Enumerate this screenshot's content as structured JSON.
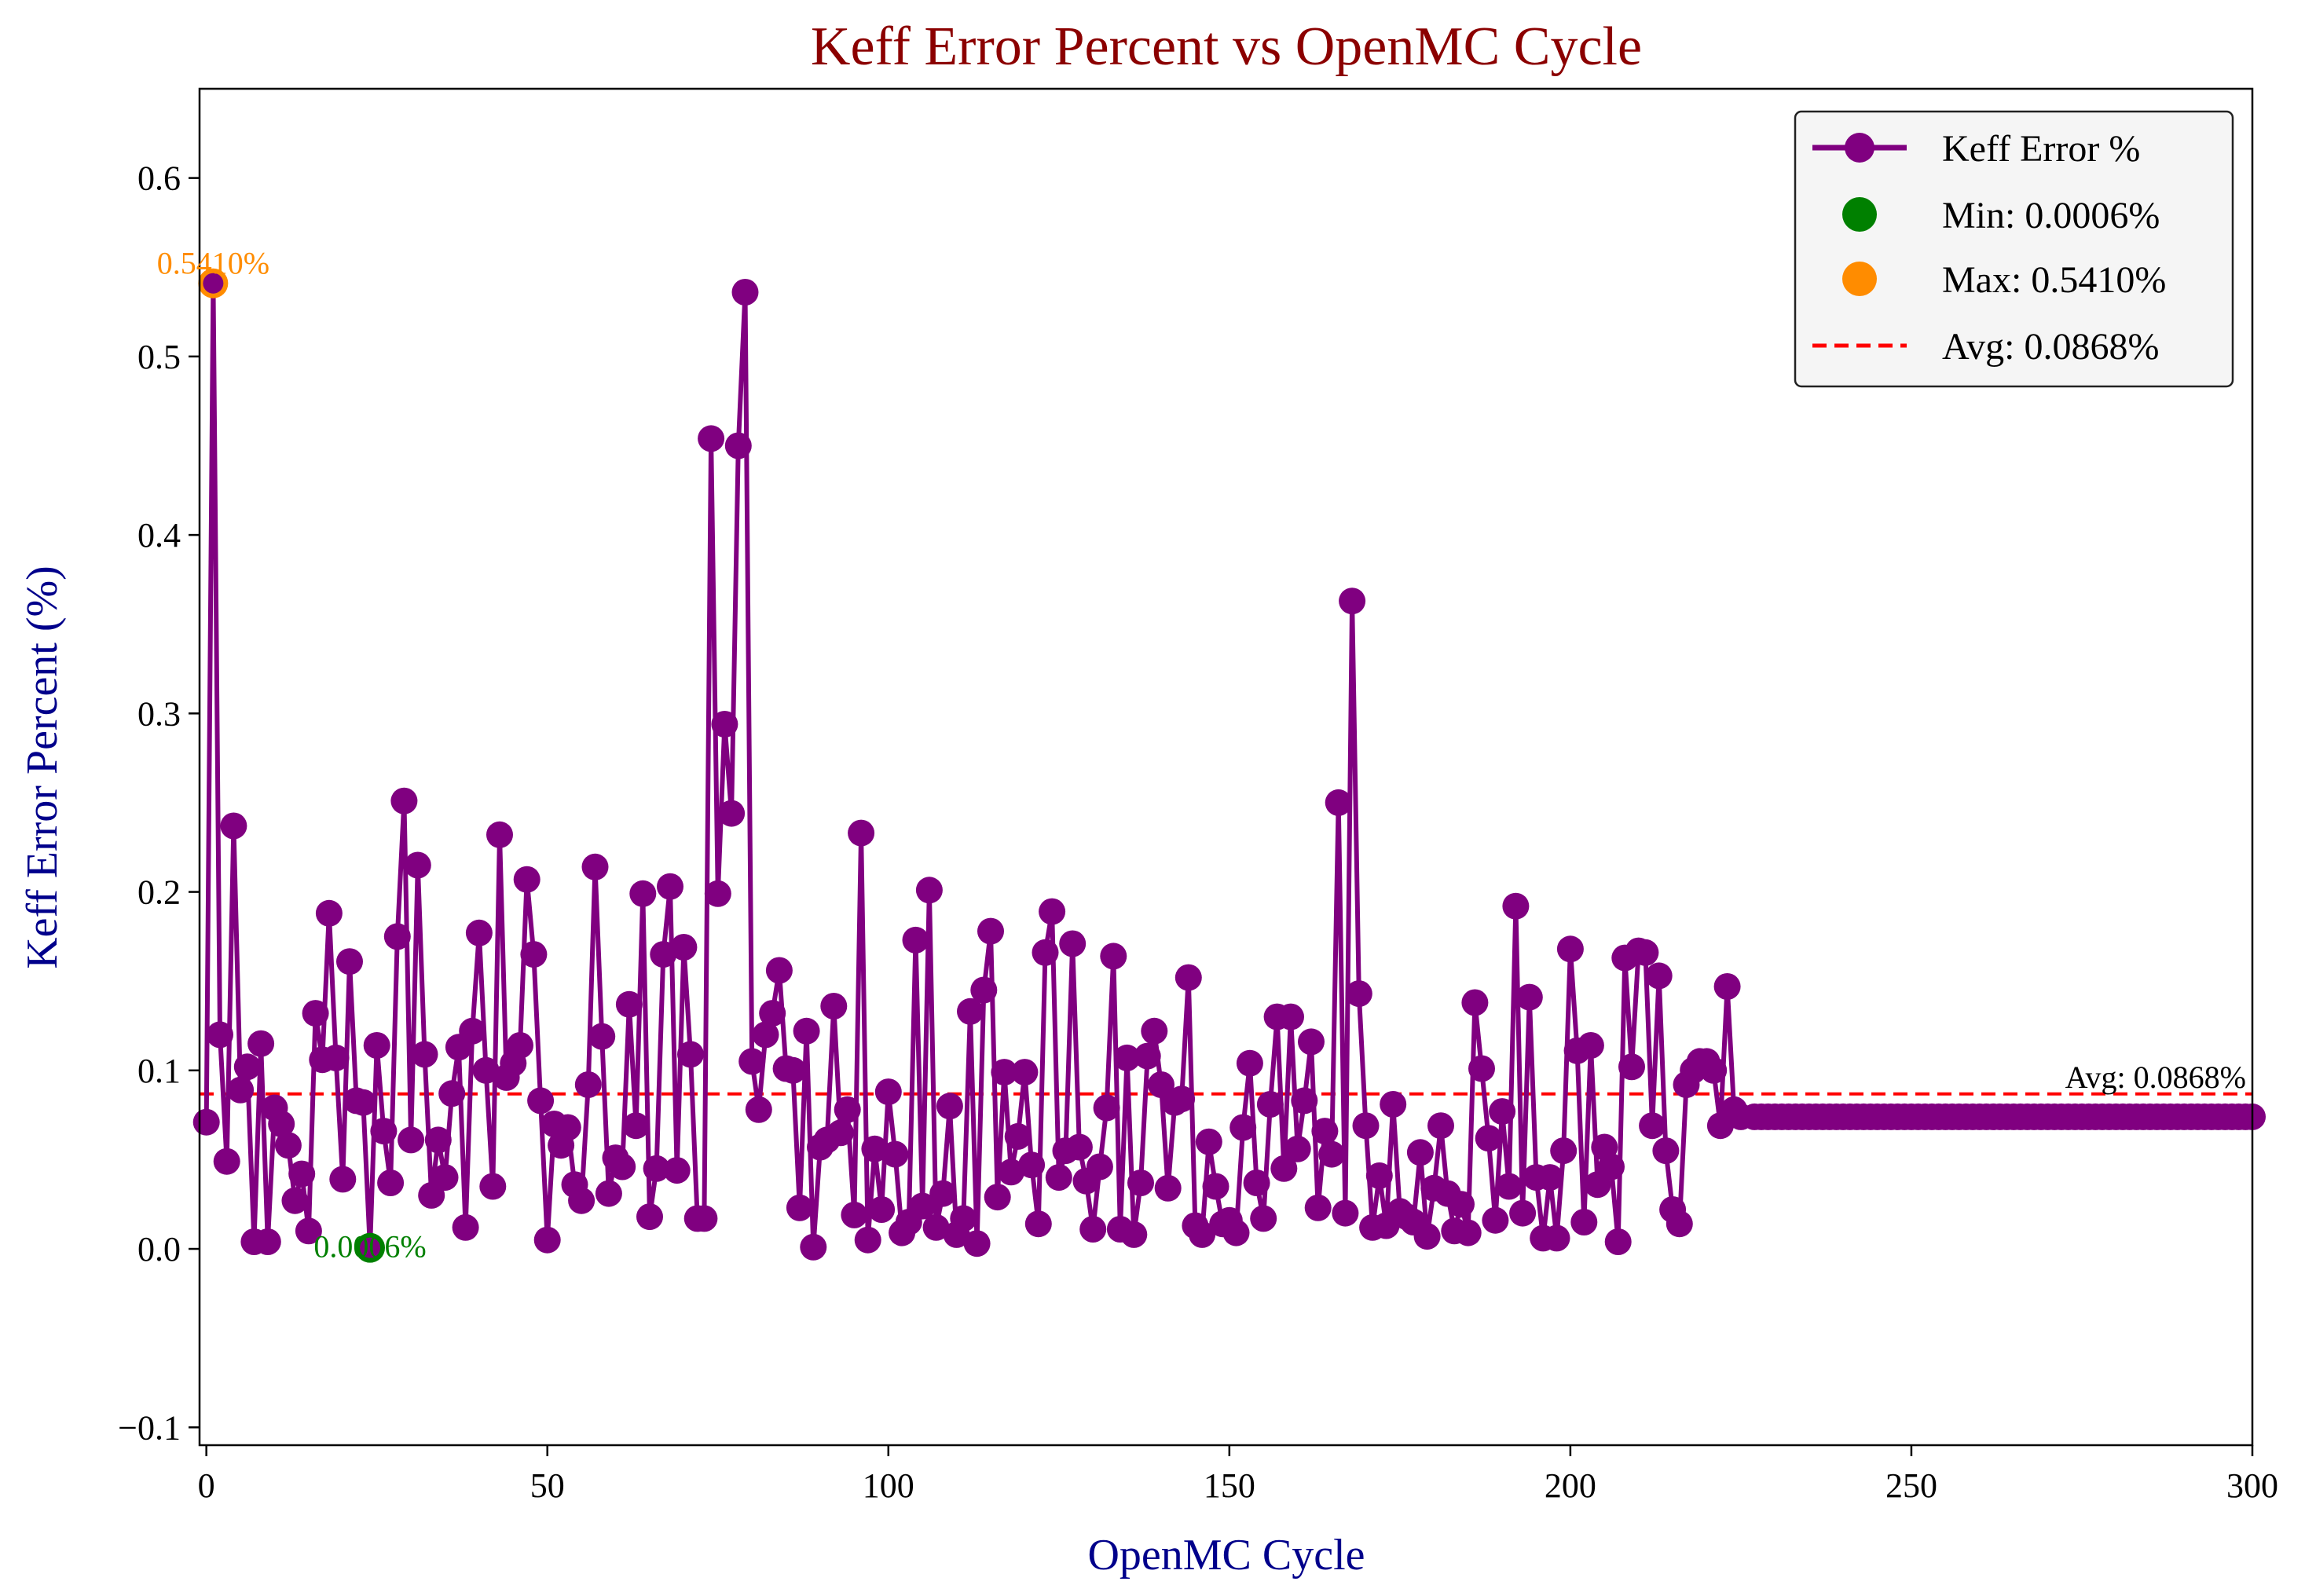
{
  "chart_data": {
    "type": "line",
    "title": "Keff Error Percent vs OpenMC Cycle",
    "xlabel": "OpenMC Cycle",
    "ylabel": "Keff Error Percent (%)",
    "xlim": [
      -1,
      300
    ],
    "ylim": [
      -0.11,
      0.65
    ],
    "xticks": [
      0,
      50,
      100,
      150,
      200,
      250,
      300
    ],
    "yticks": [
      -0.1,
      0.0,
      0.1,
      0.2,
      0.3,
      0.4,
      0.5,
      0.6
    ],
    "ytick_labels": [
      "−0.1",
      "0.0",
      "0.1",
      "0.2",
      "0.3",
      "0.4",
      "0.5",
      "0.6"
    ],
    "grid": false,
    "legend_position": "top-right",
    "colors": {
      "series": "#800080",
      "min": "#008000",
      "max": "#ff8c00",
      "avg": "#ff0000",
      "title": "#8b0000",
      "axis_title": "#00008b"
    },
    "series": [
      {
        "name": "Keff Error %",
        "x_start": 0,
        "values": [
          0.071,
          0.541,
          0.12,
          0.049,
          0.237,
          0.089,
          0.102,
          0.004,
          0.115,
          0.004,
          0.079,
          0.07,
          0.058,
          0.027,
          0.042,
          0.01,
          0.132,
          0.106,
          0.188,
          0.107,
          0.039,
          0.161,
          0.083,
          0.082,
          0.0006,
          0.114,
          0.066,
          0.037,
          0.175,
          0.251,
          0.061,
          0.215,
          0.109,
          0.03,
          0.061,
          0.04,
          0.087,
          0.113,
          0.012,
          0.122,
          0.177,
          0.1,
          0.035,
          0.232,
          0.096,
          0.104,
          0.114,
          0.207,
          0.165,
          0.083,
          0.005,
          0.07,
          0.058,
          0.068,
          0.036,
          0.027,
          0.092,
          0.214,
          0.119,
          0.031,
          0.051,
          0.046,
          0.137,
          0.069,
          0.199,
          0.018,
          0.045,
          0.165,
          0.203,
          0.044,
          0.169,
          0.109,
          0.017,
          0.017,
          0.454,
          0.199,
          0.294,
          0.244,
          0.45,
          0.536,
          0.105,
          0.078,
          0.12,
          0.132,
          0.156,
          0.101,
          0.1,
          0.023,
          0.122,
          0.001,
          0.057,
          0.061,
          0.136,
          0.065,
          0.078,
          0.019,
          0.233,
          0.005,
          0.056,
          0.022,
          0.088,
          0.053,
          0.009,
          0.015,
          0.173,
          0.024,
          0.201,
          0.012,
          0.031,
          0.08,
          0.008,
          0.017,
          0.133,
          0.003,
          0.145,
          0.178,
          0.029,
          0.099,
          0.043,
          0.063,
          0.099,
          0.047,
          0.014,
          0.166,
          0.189,
          0.04,
          0.055,
          0.171,
          0.057,
          0.038,
          0.011,
          0.046,
          0.079,
          0.164,
          0.011,
          0.107,
          0.008,
          0.037,
          0.108,
          0.122,
          0.092,
          0.034,
          0.082,
          0.084,
          0.152,
          0.013,
          0.008,
          0.06,
          0.035,
          0.014,
          0.016,
          0.009,
          0.068,
          0.104,
          0.037,
          0.017,
          0.081,
          0.13,
          0.045,
          0.13,
          0.056,
          0.083,
          0.116,
          0.023,
          0.066,
          0.053,
          0.25,
          0.02,
          0.363,
          0.143,
          0.069,
          0.012,
          0.041,
          0.013,
          0.081,
          0.021,
          0.018,
          0.015,
          0.054,
          0.007,
          0.034,
          0.069,
          0.031,
          0.01,
          0.025,
          0.009,
          0.138,
          0.101,
          0.062,
          0.016,
          0.077,
          0.035,
          0.192,
          0.02,
          0.141,
          0.04,
          0.006,
          0.04,
          0.006,
          0.055,
          0.168,
          0.111,
          0.015,
          0.114,
          0.036,
          0.057,
          0.046,
          0.004,
          0.163,
          0.102,
          0.167,
          0.166,
          0.069,
          0.153,
          0.055,
          0.022,
          0.014,
          0.092,
          0.1,
          0.105,
          0.105,
          0.1,
          0.069,
          0.147,
          0.078,
          0.074
        ],
        "tail": {
          "from": 227,
          "to": 300,
          "value": 0.074
        }
      }
    ],
    "min_point": {
      "label": "Min: 0.0006%",
      "annotation": "0.0006%",
      "x": 24,
      "y": 0.0006
    },
    "max_point": {
      "label": "Max: 0.5410%",
      "annotation": "0.5410%",
      "x": 1,
      "y": 0.541
    },
    "avg_line": {
      "label": "Avg: 0.0868%",
      "annotation": "Avg: 0.0868%",
      "y": 0.0868
    }
  }
}
